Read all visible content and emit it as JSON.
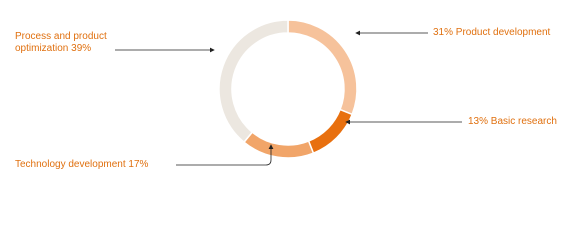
{
  "chart_data": {
    "type": "donut",
    "categories": [
      "Product development",
      "Basic research",
      "Technology development",
      "Process and product optimization"
    ],
    "values": [
      31,
      13,
      17,
      39
    ],
    "value_labels": [
      "31%",
      "13%",
      "17%",
      "39%"
    ],
    "colors": [
      "#f6c29b",
      "#e8700f",
      "#f1a569",
      "#ece7e0"
    ]
  }
}
